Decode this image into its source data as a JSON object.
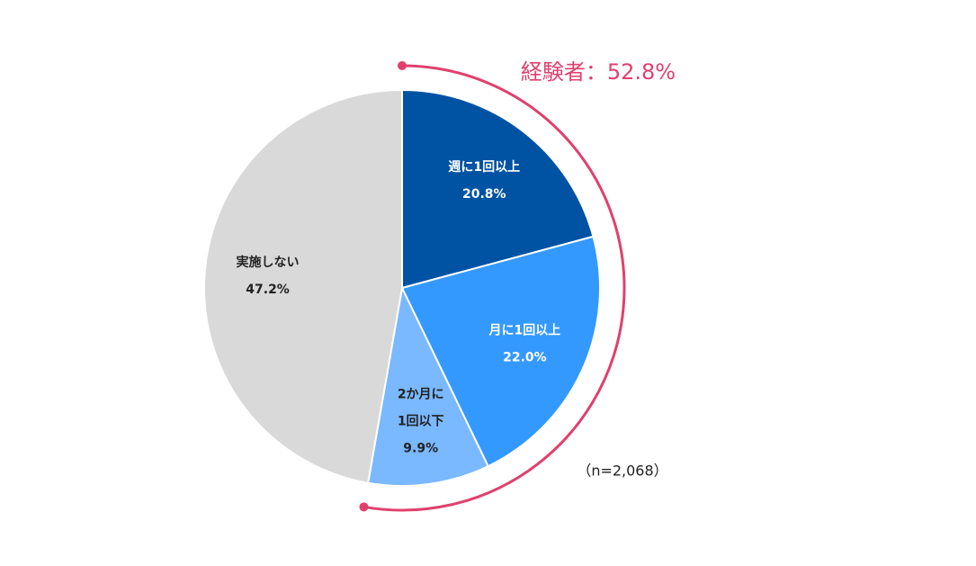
{
  "chart_data": {
    "type": "pie",
    "categories": [
      "週に1回以上",
      "月に1回以上",
      "2か月に\n1回以下",
      "実施しない"
    ],
    "values": [
      20.8,
      22.0,
      9.9,
      47.2
    ],
    "value_labels": [
      "20.8%",
      "22.0%",
      "9.9%",
      "47.2%"
    ],
    "colors": [
      "#0052a3",
      "#3399ff",
      "#7ab8ff",
      "#d9d9d9"
    ],
    "annotation": "経験者：52.8%",
    "annotation_color": "#e0406e",
    "note": "（n=2,068）"
  }
}
